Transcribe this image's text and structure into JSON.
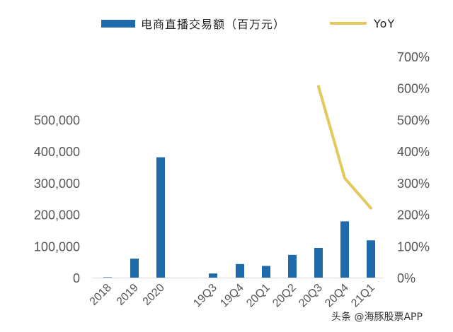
{
  "chart_data": {
    "type": "bar",
    "categories": [
      "2018",
      "2019",
      "2020",
      "19Q3",
      "19Q4",
      "20Q1",
      "20Q2",
      "20Q3",
      "20Q4",
      "21Q1"
    ],
    "series": [
      {
        "name": "电商直播交易额（百万元）",
        "kind": "bar",
        "axis": "left",
        "color": "#1f6aaa",
        "values": [
          1300,
          60000,
          381000,
          13000,
          43000,
          37000,
          72000,
          94000,
          178000,
          118000
        ]
      },
      {
        "name": "YoY",
        "kind": "line",
        "axis": "right",
        "color": "#e3c95b",
        "values": [
          null,
          null,
          null,
          null,
          null,
          null,
          null,
          6.05,
          3.15,
          2.2
        ]
      }
    ],
    "y_left": {
      "ylim": [
        0,
        700000
      ],
      "ticks": [
        "0",
        "100,000",
        "200,000",
        "300,000",
        "400,000",
        "500,000"
      ]
    },
    "y_right": {
      "ylim": [
        0,
        7
      ],
      "ticks": [
        "0%",
        "100%",
        "200%",
        "300%",
        "400%",
        "500%",
        "600%",
        "700%"
      ]
    },
    "legend_position": "top",
    "grid": false
  },
  "watermark": "头条 @海豚股票APP"
}
